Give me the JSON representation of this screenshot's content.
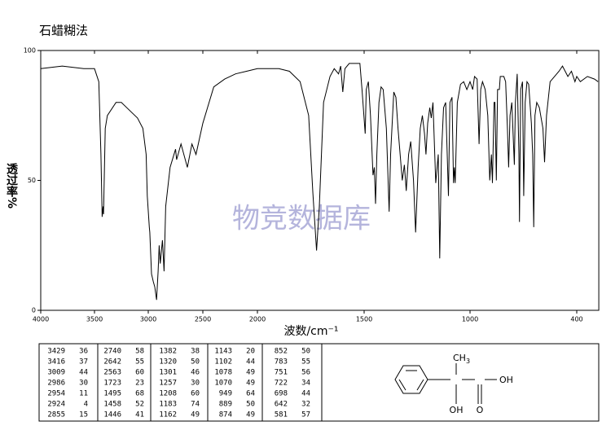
{
  "chart_data": {
    "type": "line",
    "title": "石蜡糊法",
    "x_label": "波数/cm⁻¹",
    "y_label": "透过率%",
    "watermark": "物竞数据库",
    "color": "#000000",
    "x": [
      4000,
      3800,
      3600,
      3500,
      3460,
      3440,
      3429,
      3420,
      3416,
      3400,
      3380,
      3300,
      3250,
      3200,
      3100,
      3050,
      3020,
      3009,
      2990,
      2986,
      2970,
      2954,
      2940,
      2924,
      2910,
      2900,
      2890,
      2870,
      2855,
      2840,
      2800,
      2750,
      2740,
      2700,
      2642,
      2600,
      2563,
      2500,
      2400,
      2300,
      2200,
      2100,
      2000,
      1950,
      1900,
      1850,
      1800,
      1760,
      1740,
      1723,
      1710,
      1690,
      1660,
      1640,
      1620,
      1610,
      1600,
      1590,
      1570,
      1540,
      1520,
      1510,
      1495,
      1490,
      1480,
      1470,
      1458,
      1452,
      1446,
      1440,
      1430,
      1420,
      1410,
      1395,
      1382,
      1375,
      1360,
      1350,
      1340,
      1330,
      1320,
      1310,
      1301,
      1290,
      1280,
      1267,
      1257,
      1245,
      1235,
      1225,
      1215,
      1208,
      1200,
      1190,
      1183,
      1175,
      1162,
      1150,
      1143,
      1135,
      1125,
      1115,
      1102,
      1095,
      1085,
      1078,
      1074,
      1070,
      1060,
      1045,
      1030,
      1015,
      1000,
      985,
      975,
      960,
      949,
      940,
      930,
      915,
      900,
      889,
      880,
      874,
      865,
      860,
      852,
      845,
      835,
      830,
      810,
      800,
      790,
      783,
      775,
      765,
      751,
      745,
      735,
      725,
      722,
      715,
      705,
      698,
      690,
      680,
      670,
      655,
      648,
      642,
      635,
      625,
      610,
      590,
      581,
      570,
      550,
      500,
      480,
      450,
      430,
      410,
      400,
      380,
      340,
      300,
      280
    ],
    "values": [
      93,
      94,
      93,
      93,
      88,
      60,
      36,
      40,
      37,
      70,
      75,
      80,
      80,
      78,
      74,
      70,
      60,
      44,
      32,
      30,
      14,
      11,
      9,
      4,
      15,
      25,
      18,
      27,
      15,
      40,
      55,
      62,
      58,
      64,
      55,
      64,
      60,
      72,
      86,
      89,
      91,
      92,
      93,
      93,
      93,
      92,
      88,
      75,
      45,
      23,
      40,
      80,
      90,
      93,
      91,
      94,
      84,
      93,
      95,
      95,
      95,
      85,
      68,
      85,
      88,
      75,
      52,
      55,
      41,
      60,
      80,
      86,
      85,
      70,
      38,
      60,
      84,
      82,
      70,
      60,
      50,
      56,
      46,
      60,
      65,
      50,
      30,
      55,
      70,
      75,
      68,
      60,
      72,
      78,
      74,
      80,
      49,
      60,
      20,
      60,
      78,
      80,
      44,
      80,
      82,
      49,
      55,
      49,
      80,
      87,
      88,
      85,
      88,
      85,
      90,
      89,
      64,
      85,
      88,
      85,
      75,
      50,
      60,
      49,
      80,
      80,
      50,
      85,
      85,
      90,
      90,
      88,
      70,
      55,
      75,
      80,
      56,
      80,
      91,
      60,
      34,
      85,
      88,
      44,
      80,
      88,
      87,
      72,
      60,
      32,
      75,
      80,
      78,
      70,
      57,
      75,
      88,
      92,
      94,
      90,
      92,
      88,
      90,
      88,
      90,
      89,
      88
    ],
    "xlim": [
      4000,
      276
    ],
    "ylim": [
      0,
      100
    ],
    "xticks": [
      4000,
      3500,
      3000,
      2500,
      2000,
      1500,
      1000,
      400
    ],
    "yticks": [
      0,
      50,
      100
    ]
  },
  "peak_table": {
    "columns": [
      [
        [
          "3429",
          "36"
        ],
        [
          "3416",
          "37"
        ],
        [
          "3009",
          "44"
        ],
        [
          "2986",
          "30"
        ],
        [
          "2954",
          "11"
        ],
        [
          "2924",
          "4"
        ],
        [
          "2855",
          "15"
        ]
      ],
      [
        [
          "2740",
          "58"
        ],
        [
          "2642",
          "55"
        ],
        [
          "2563",
          "60"
        ],
        [
          "1723",
          "23"
        ],
        [
          "1495",
          "68"
        ],
        [
          "1458",
          "52"
        ],
        [
          "1446",
          "41"
        ]
      ],
      [
        [
          "1382",
          "38"
        ],
        [
          "1320",
          "50"
        ],
        [
          "1301",
          "46"
        ],
        [
          "1257",
          "30"
        ],
        [
          "1208",
          "60"
        ],
        [
          "1183",
          "74"
        ],
        [
          "1162",
          "49"
        ]
      ],
      [
        [
          "1143",
          "20"
        ],
        [
          "1102",
          "44"
        ],
        [
          "1078",
          "49"
        ],
        [
          "1070",
          "49"
        ],
        [
          "949",
          "64"
        ],
        [
          "889",
          "50"
        ],
        [
          "874",
          "49"
        ]
      ],
      [
        [
          "852",
          "50"
        ],
        [
          "783",
          "55"
        ],
        [
          "751",
          "56"
        ],
        [
          "722",
          "34"
        ],
        [
          "698",
          "44"
        ],
        [
          "642",
          "32"
        ],
        [
          "581",
          "57"
        ]
      ]
    ]
  },
  "structure": {
    "methyl": "CH",
    "methyl_sub": "3",
    "hydroxyl": "OH",
    "acid_oh": "OH",
    "carbonyl": "O"
  }
}
